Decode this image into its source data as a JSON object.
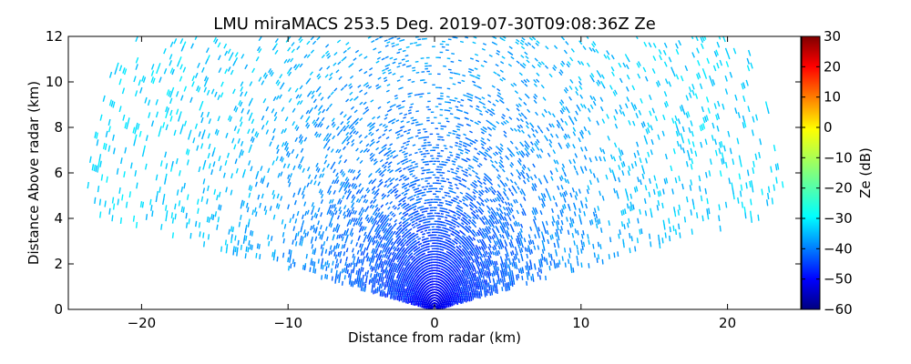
{
  "chart_data": {
    "type": "scatter",
    "title": "LMU miraMACS 253.5 Deg. 2019-07-30T09:08:36Z  Ze",
    "xlabel": "Distance from radar (km)",
    "ylabel": "Distance Above radar  (km)",
    "xlim": [
      -25,
      25
    ],
    "ylim": [
      0,
      12
    ],
    "xticks": [
      -20,
      -10,
      0,
      10,
      20
    ],
    "yticks": [
      0,
      2,
      4,
      6,
      8,
      10,
      12
    ],
    "xtick_labels": [
      "−20",
      "−10",
      "0",
      "10",
      "20"
    ],
    "ytick_labels": [
      "0",
      "2",
      "4",
      "6",
      "8",
      "10",
      "12"
    ],
    "grid": false,
    "colorbar": {
      "label": "Ze (dB)",
      "range": [
        -60,
        30
      ],
      "ticks": [
        30,
        20,
        10,
        0,
        -10,
        -20,
        -30,
        -40,
        -50,
        -60
      ],
      "tick_labels": [
        "30",
        "20",
        "10",
        "0",
        "−10",
        "−20",
        "−30",
        "−40",
        "−50",
        "−60"
      ],
      "colormap": "jet"
    },
    "scan": {
      "elevation_min_deg": 10,
      "elevation_max_deg": 170,
      "max_range_km": 24.5,
      "radar_position_km": [
        0,
        0
      ]
    },
    "field_summary": [
      {
        "range_km": [
          0,
          2
        ],
        "ze_db": -52
      },
      {
        "range_km": [
          2,
          5
        ],
        "ze_db": -45
      },
      {
        "range_km": [
          5,
          10
        ],
        "ze_db": -40
      },
      {
        "range_km": [
          10,
          15
        ],
        "ze_db": -36
      },
      {
        "range_km": [
          15,
          20
        ],
        "ze_db": -32
      },
      {
        "range_km": [
          20,
          24.5
        ],
        "ze_db": -30
      }
    ]
  }
}
